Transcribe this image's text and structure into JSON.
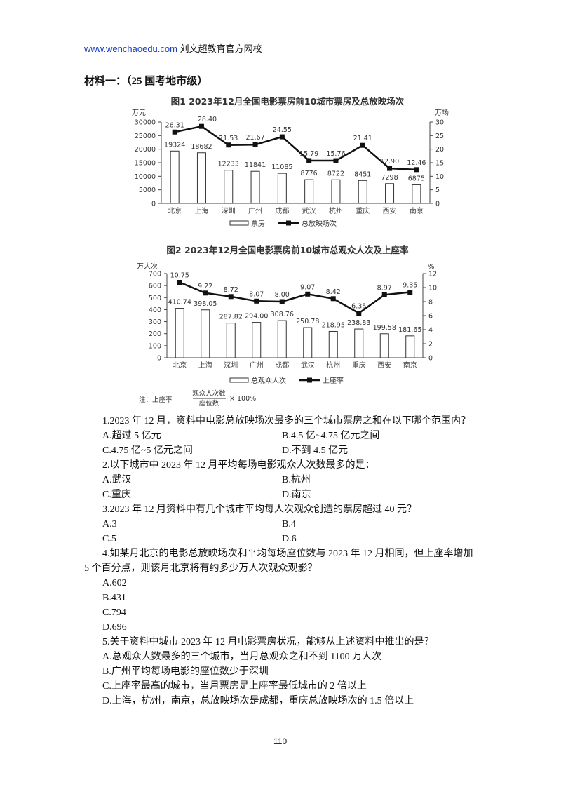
{
  "header": {
    "link": "www.wenchaoedu.com",
    "site_name": "刘文超教育官方网校"
  },
  "material_title": "材料一：（25 国考地市级）",
  "colors": {
    "line": "#111111",
    "bar_fill": "#ffffff",
    "bar_stroke": "#333333",
    "axis": "#444444",
    "link": "#1a3fbf"
  },
  "chart_data": [
    {
      "type": "bar+line",
      "title": "图1  2023年12月全国电影票房前10城市票房及总放映场次",
      "ylabel_left": "万元",
      "ylabel_right": "万场",
      "ylim_left": [
        0,
        30000
      ],
      "ylim_right": [
        0,
        30
      ],
      "yticks_left": [
        "0",
        "5000",
        "10000",
        "15000",
        "20000",
        "25000",
        "30000"
      ],
      "yticks_right": [
        "0",
        "5",
        "10",
        "15",
        "20",
        "25",
        "30"
      ],
      "categories": [
        "北京",
        "上海",
        "深圳",
        "广州",
        "成都",
        "武汉",
        "杭州",
        "重庆",
        "西安",
        "南京"
      ],
      "series": [
        {
          "name": "票房",
          "type": "bar",
          "axis": "left",
          "values": [
            19324,
            18682,
            12233,
            11841,
            11085,
            8776,
            8722,
            8451,
            7298,
            6875
          ]
        },
        {
          "name": "总放映场次",
          "type": "line",
          "axis": "right",
          "values": [
            26.31,
            28.4,
            21.53,
            21.67,
            24.55,
            15.79,
            15.76,
            21.41,
            12.9,
            12.46
          ]
        }
      ],
      "grid": false,
      "legend": "bottom"
    },
    {
      "type": "bar+line",
      "title": "图2  2023年12月全国电影票房前10城市总观众人次及上座率",
      "ylabel_left": "万人次",
      "ylabel_right": "%",
      "ylim_left": [
        0,
        700
      ],
      "ylim_right": [
        0,
        12
      ],
      "yticks_left": [
        "0",
        "100",
        "200",
        "300",
        "400",
        "500",
        "600",
        "700"
      ],
      "yticks_right": [
        "0",
        "2",
        "4",
        "6",
        "8",
        "10",
        "12"
      ],
      "categories": [
        "北京",
        "上海",
        "深圳",
        "广州",
        "成都",
        "武汉",
        "杭州",
        "重庆",
        "西安",
        "南京"
      ],
      "series": [
        {
          "name": "总观众人次",
          "type": "bar",
          "axis": "left",
          "values": [
            410.74,
            398.05,
            287.82,
            294.0,
            308.76,
            250.78,
            218.95,
            238.83,
            199.58,
            181.65
          ]
        },
        {
          "name": "上座率",
          "type": "line",
          "axis": "right",
          "values": [
            10.75,
            9.22,
            8.72,
            8.07,
            8.0,
            9.07,
            8.42,
            6.35,
            8.97,
            9.35
          ]
        }
      ],
      "grid": false,
      "legend": "bottom",
      "note": {
        "prefix": "注：上座率",
        "numerator": "观众人次数",
        "denominator": "座位数",
        "suffix": "× 100%"
      }
    }
  ],
  "questions": [
    {
      "stem": [
        "1.2023 年 12 月，资料中电影总放映场次最多的三个城市票房之和在以下哪个范围内？"
      ],
      "options": [
        "A.超过 5 亿元",
        "B.4.5 亿~4.75 亿元之间",
        "C.4.75 亿~5 亿元之间",
        "D.不到 4.5 亿元"
      ],
      "layout": "two-col"
    },
    {
      "stem": [
        "2.以下城市中 2023 年 12 月平均每场电影观众人次数最多的是："
      ],
      "options": [
        "A.武汉",
        "B.杭州",
        "C.重庆",
        "D.南京"
      ],
      "layout": "two-col"
    },
    {
      "stem": [
        "3.2023 年 12 月资料中有几个城市平均每人次观众创造的票房超过 40 元？"
      ],
      "options": [
        "A.3",
        "B.4",
        "C.5",
        "D.6"
      ],
      "layout": "two-col"
    },
    {
      "stem": [
        "4.如某月北京的电影总放映场次和平均每场座位数与 2023 年 12 月相同，但上座率增加",
        "5 个百分点，则该月北京将有约多少万人次观众观影？"
      ],
      "options": [
        "A.602",
        "B.431",
        "C.794",
        "D.696"
      ],
      "layout": "one-col"
    },
    {
      "stem": [
        "5.关于资料中城市 2023 年 12 月电影票房状况，能够从上述资料中推出的是？"
      ],
      "options": [
        "A.总观众人数最多的三个城市，当月总观众之和不到 1100 万人次",
        "B.广州平均每场电影的座位数少于深圳",
        "C.上座率最高的城市，当月票房是上座率最低城市的 2 倍以上",
        "D.上海，杭州，南京，总放映场次是成都，重庆总放映场次的 1.5 倍以上"
      ],
      "layout": "one-col"
    }
  ],
  "page_number": "110"
}
